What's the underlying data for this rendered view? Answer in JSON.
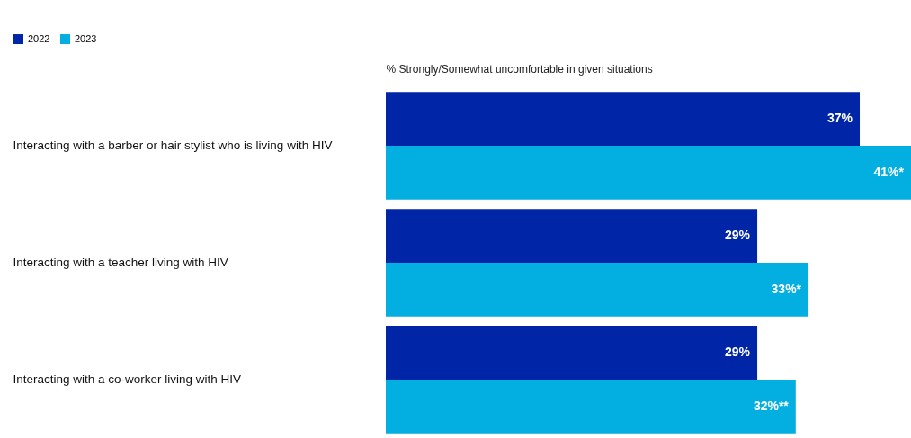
{
  "chart_data": {
    "type": "bar",
    "orientation": "horizontal",
    "xlabel": "% Strongly/Somewhat uncomfortable in given situations",
    "categories": [
      "Interacting with a barber or hair stylist who is living with HIV",
      "Interacting with a teacher living with HIV",
      "Interacting with a co-worker living with HIV"
    ],
    "series": [
      {
        "name": "2022",
        "color": "#0025a6",
        "values": [
          37,
          29,
          29
        ],
        "value_labels": [
          "37%",
          "29%",
          "29%"
        ]
      },
      {
        "name": "2023",
        "color": "#03aee0",
        "values": [
          41,
          33,
          32
        ],
        "value_labels": [
          "41%*",
          "33%*",
          "32%**"
        ]
      }
    ],
    "legend": "top left",
    "tick_labels": "y"
  }
}
